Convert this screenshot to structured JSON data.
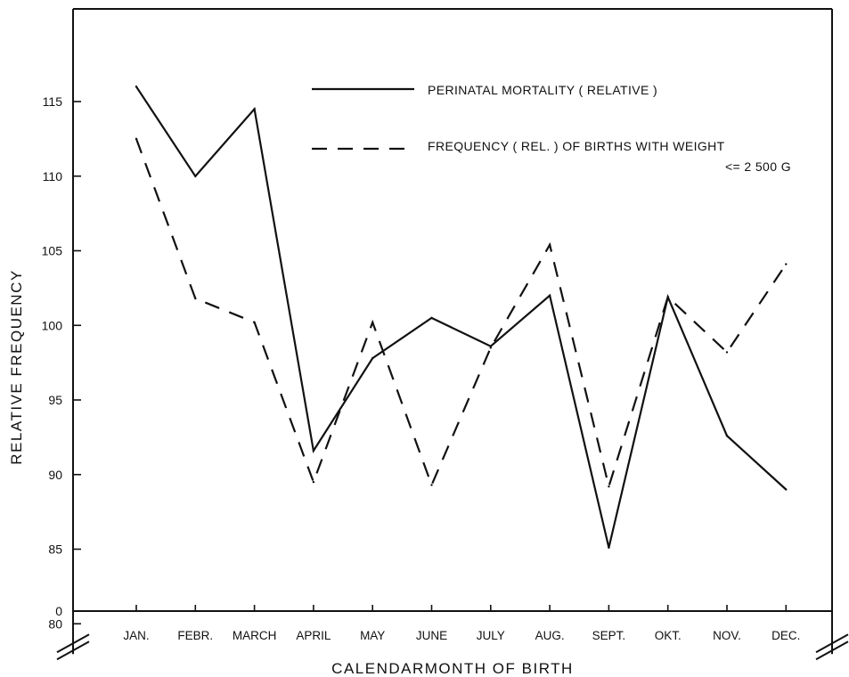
{
  "chart_data": {
    "type": "line",
    "title": "",
    "xlabel": "CALENDARMONTH OF BIRTH",
    "ylabel": "RELATIVE FREQUENCY",
    "categories": [
      "JAN.",
      "FEBR.",
      "MARCH",
      "APRIL",
      "MAY",
      "JUNE",
      "JULY",
      "AUG.",
      "SEPT.",
      "OKT.",
      "NOV.",
      "DEC."
    ],
    "ylim": [
      80,
      117
    ],
    "yticks": [
      80,
      85,
      90,
      95,
      100,
      105,
      110,
      115
    ],
    "ytick_labels": [
      "80",
      "85",
      "90",
      "95",
      "100",
      "105",
      "110",
      "115"
    ],
    "y_origin_label": "0",
    "axis_break": true,
    "grid": false,
    "legend_position": "top-right",
    "series": [
      {
        "name": "PERINATAL MORTALITY  ( RELATIVE )",
        "style": "solid",
        "values": [
          116.0,
          110.0,
          114.5,
          91.6,
          97.8,
          100.5,
          98.6,
          102.0,
          85.1,
          101.9,
          92.6,
          89.0
        ]
      },
      {
        "name": "FREQUENCY ( REL. )  OF  BIRTHS  WITH  WEIGHT",
        "name_line2": "<=  2 500   G",
        "style": "dashed",
        "values": [
          112.5,
          101.8,
          100.2,
          89.5,
          100.2,
          89.3,
          98.5,
          105.4,
          89.2,
          101.9,
          98.2,
          104.1
        ]
      }
    ]
  }
}
